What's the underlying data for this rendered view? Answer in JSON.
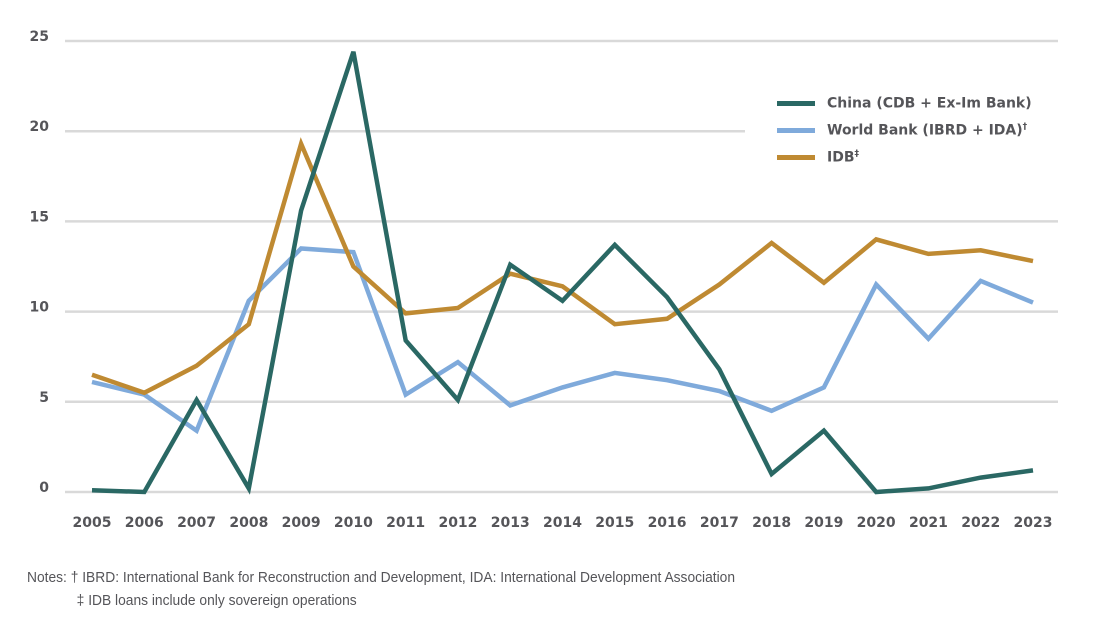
{
  "chart_data": {
    "type": "line",
    "title": "",
    "xlabel": "",
    "ylabel": "",
    "ylim": [
      0,
      25
    ],
    "yticks": [
      0,
      5,
      10,
      15,
      20,
      25
    ],
    "grid": true,
    "legend_position": "top-right",
    "categories": [
      "2005",
      "2006",
      "2007",
      "2008",
      "2009",
      "2010",
      "2011",
      "2012",
      "2013",
      "2014",
      "2015",
      "2016",
      "2017",
      "2018",
      "2019",
      "2020",
      "2021",
      "2022",
      "2023"
    ],
    "series": [
      {
        "name": "China (CDB + Ex-Im Bank)",
        "label_base": "China (CDB + Ex-Im Bank)",
        "label_sup": "",
        "color": "#2a6864",
        "values": [
          0.1,
          0.0,
          5.1,
          0.2,
          15.6,
          24.4,
          8.4,
          5.1,
          12.6,
          10.6,
          13.7,
          10.8,
          6.8,
          1.0,
          3.4,
          0.0,
          0.2,
          0.8,
          1.2
        ]
      },
      {
        "name": "World Bank (IBRD + IDA)†",
        "label_base": "World Bank (IBRD + IDA)",
        "label_sup": "†",
        "color": "#7faadb",
        "values": [
          6.1,
          5.4,
          3.4,
          10.6,
          13.5,
          13.3,
          5.4,
          7.2,
          4.8,
          5.8,
          6.6,
          6.2,
          5.6,
          4.5,
          5.8,
          11.5,
          8.5,
          11.7,
          10.5
        ]
      },
      {
        "name": "IDB‡",
        "label_base": "IDB",
        "label_sup": "‡",
        "color": "#bf8a32",
        "values": [
          6.5,
          5.5,
          7.0,
          9.3,
          19.3,
          12.5,
          9.9,
          10.2,
          12.1,
          11.4,
          9.3,
          9.6,
          11.5,
          13.8,
          11.6,
          14.0,
          13.2,
          13.4,
          12.8
        ]
      }
    ],
    "annotations": {
      "notes_line1": "Notes: † IBRD: International Bank for Reconstruction and Development, IDA: International Development Association",
      "notes_line2": "‡ IDB loans include only sovereign operations"
    }
  }
}
